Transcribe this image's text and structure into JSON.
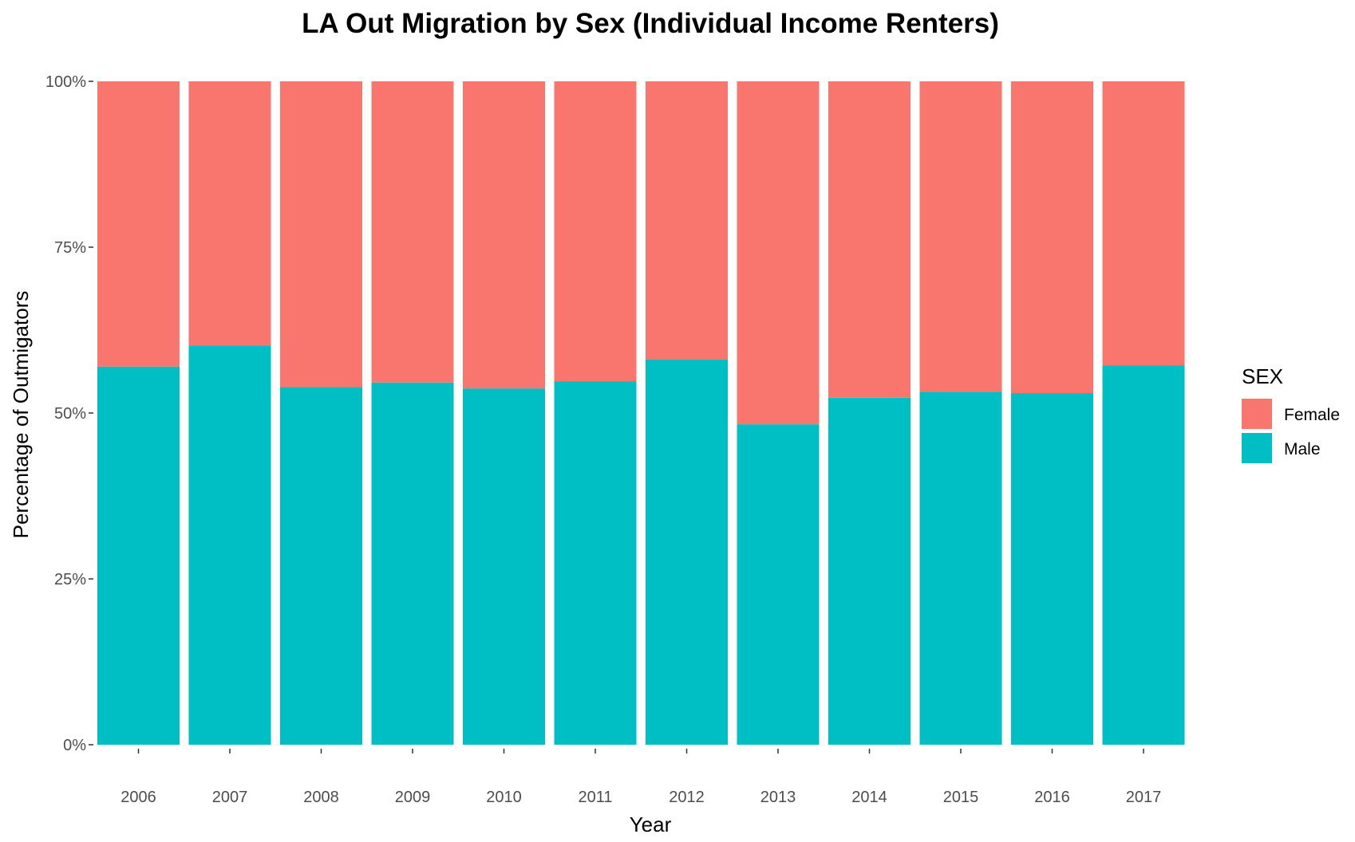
{
  "chart_data": {
    "type": "bar",
    "stacked": true,
    "normalized": true,
    "title": "LA Out Migration by Sex (Individual Income Renters)",
    "xlabel": "Year",
    "ylabel": "Percentage of Outmigators",
    "categories": [
      "2006",
      "2007",
      "2008",
      "2009",
      "2010",
      "2011",
      "2012",
      "2013",
      "2014",
      "2015",
      "2016",
      "2017"
    ],
    "ylim": [
      0,
      100
    ],
    "yticks": [
      "0%",
      "25%",
      "50%",
      "75%",
      "100%"
    ],
    "ytick_values": [
      0,
      25,
      50,
      75,
      100
    ],
    "grid": false,
    "legend": {
      "title": "SEX",
      "placement": "right",
      "entries": [
        "Female",
        "Male"
      ]
    },
    "series": [
      {
        "name": "Female",
        "color": "#F8766D",
        "values": [
          43.0,
          39.8,
          46.1,
          45.4,
          46.3,
          45.2,
          41.9,
          51.7,
          47.7,
          46.8,
          47.0,
          42.8
        ]
      },
      {
        "name": "Male",
        "color": "#00BFC4",
        "values": [
          57.0,
          60.2,
          53.9,
          54.6,
          53.7,
          54.8,
          58.1,
          48.3,
          52.3,
          53.2,
          53.0,
          57.2
        ]
      }
    ]
  }
}
